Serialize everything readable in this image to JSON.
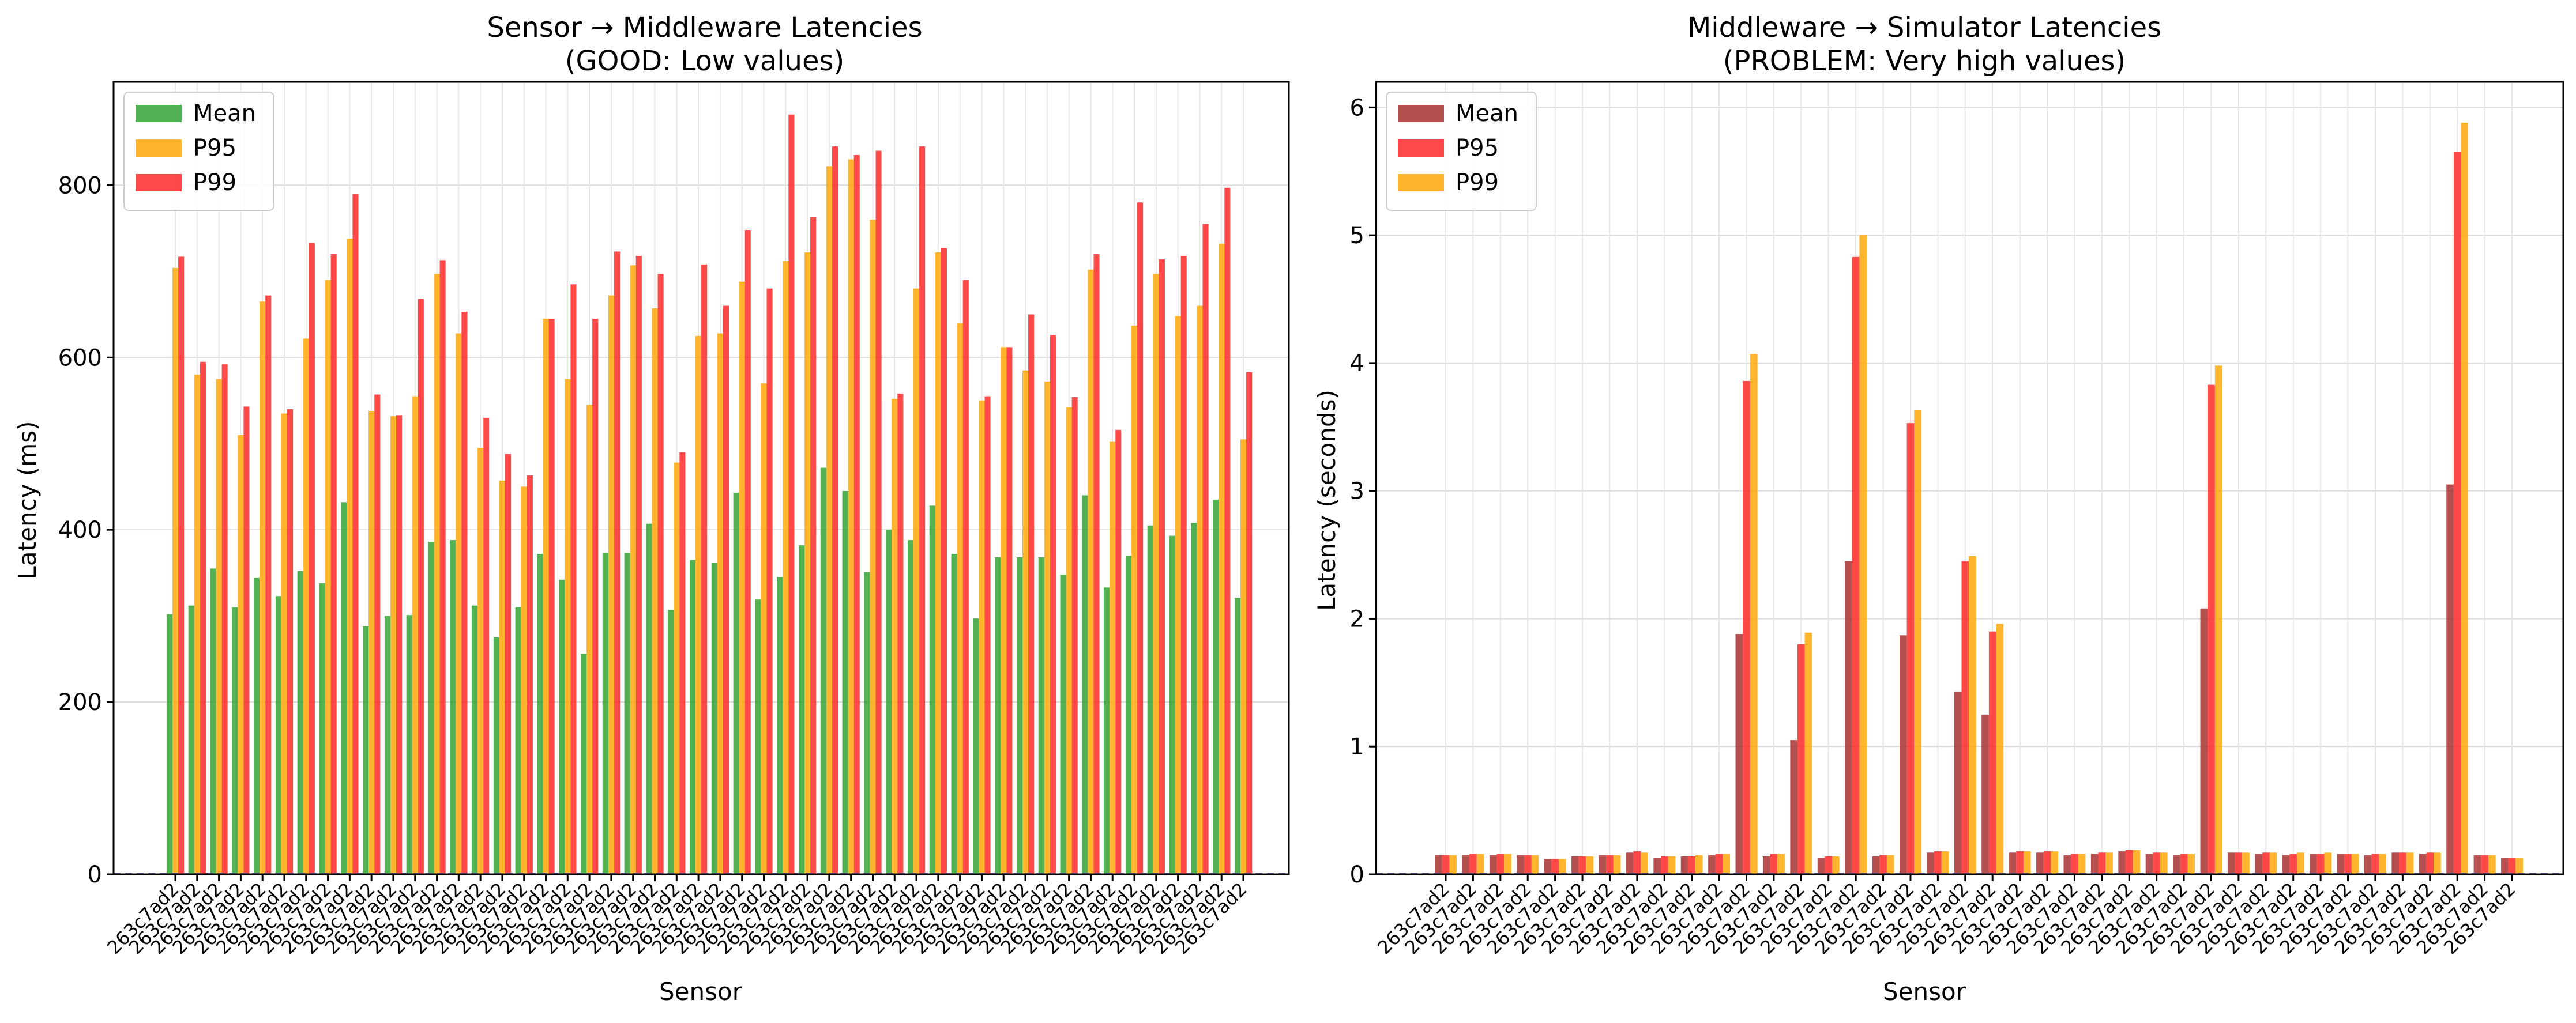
{
  "chart_data": [
    {
      "type": "bar",
      "title_line1": "Sensor → Middleware Latencies",
      "title_line2": "(GOOD: Low values)",
      "xlabel": "Sensor",
      "ylabel": "Latency (ms)",
      "ylim": [
        0,
        920
      ],
      "yticks": [
        0,
        200,
        400,
        600,
        800
      ],
      "grid": true,
      "legend_position": "upper left",
      "reference_line": 0,
      "categories": [
        "263c7ad2",
        "263c7ad2",
        "263c7ad2",
        "263c7ad2",
        "263c7ad2",
        "263c7ad2",
        "263c7ad2",
        "263c7ad2",
        "263c7ad2",
        "263c7ad2",
        "263c7ad2",
        "263c7ad2",
        "263c7ad2",
        "263c7ad2",
        "263c7ad2",
        "263c7ad2",
        "263c7ad2",
        "263c7ad2",
        "263c7ad2",
        "263c7ad2",
        "263c7ad2",
        "263c7ad2",
        "263c7ad2",
        "263c7ad2",
        "263c7ad2",
        "263c7ad2",
        "263c7ad2",
        "263c7ad2",
        "263c7ad2",
        "263c7ad2",
        "263c7ad2",
        "263c7ad2",
        "263c7ad2",
        "263c7ad2",
        "263c7ad2",
        "263c7ad2",
        "263c7ad2",
        "263c7ad2",
        "263c7ad2",
        "263c7ad2",
        "263c7ad2",
        "263c7ad2",
        "263c7ad2",
        "263c7ad2",
        "263c7ad2",
        "263c7ad2",
        "263c7ad2",
        "263c7ad2",
        "263c7ad2",
        "263c7ad2"
      ],
      "series": [
        {
          "name": "Mean",
          "color": "#2ca02c",
          "values": [
            302,
            312,
            355,
            310,
            344,
            323,
            352,
            338,
            432,
            288,
            300,
            301,
            386,
            388,
            312,
            275,
            310,
            372,
            342,
            256,
            373,
            373,
            407,
            307,
            365,
            362,
            443,
            319,
            345,
            382,
            472,
            445,
            351,
            400,
            388,
            428,
            372,
            297,
            368,
            368,
            368,
            348,
            440,
            333,
            370,
            405,
            393,
            408,
            435,
            321
          ]
        },
        {
          "name": "P95",
          "color": "#ffa500",
          "values": [
            704,
            580,
            575,
            510,
            665,
            535,
            622,
            690,
            738,
            538,
            532,
            555,
            697,
            628,
            495,
            457,
            450,
            645,
            575,
            545,
            672,
            707,
            657,
            478,
            625,
            628,
            688,
            570,
            712,
            722,
            822,
            830,
            760,
            552,
            680,
            722,
            640,
            550,
            612,
            585,
            572,
            542,
            702,
            502,
            637,
            697,
            648,
            660,
            732,
            505
          ]
        },
        {
          "name": "P99",
          "color": "#ff2020",
          "values": [
            717,
            595,
            592,
            543,
            672,
            540,
            733,
            720,
            790,
            557,
            533,
            668,
            713,
            653,
            530,
            488,
            463,
            645,
            685,
            645,
            723,
            718,
            697,
            490,
            708,
            660,
            748,
            680,
            882,
            763,
            845,
            835,
            840,
            558,
            845,
            727,
            690,
            555,
            612,
            650,
            626,
            554,
            720,
            516,
            780,
            714,
            718,
            755,
            797,
            583
          ]
        }
      ]
    },
    {
      "type": "bar",
      "title_line1": "Middleware → Simulator Latencies",
      "title_line2": "(PROBLEM: Very high values)",
      "xlabel": "Sensor",
      "ylabel": "Latency (seconds)",
      "ylim": [
        0,
        6.2
      ],
      "yticks": [
        0,
        1,
        2,
        3,
        4,
        5,
        6
      ],
      "grid": true,
      "legend_position": "upper left",
      "reference_line": 0,
      "categories": [
        "263c7ad2",
        "263c7ad2",
        "263c7ad2",
        "263c7ad2",
        "263c7ad2",
        "263c7ad2",
        "263c7ad2",
        "263c7ad2",
        "263c7ad2",
        "263c7ad2",
        "263c7ad2",
        "263c7ad2",
        "263c7ad2",
        "263c7ad2",
        "263c7ad2",
        "263c7ad2",
        "263c7ad2",
        "263c7ad2",
        "263c7ad2",
        "263c7ad2",
        "263c7ad2",
        "263c7ad2",
        "263c7ad2",
        "263c7ad2",
        "263c7ad2",
        "263c7ad2",
        "263c7ad2",
        "263c7ad2",
        "263c7ad2",
        "263c7ad2",
        "263c7ad2",
        "263c7ad2",
        "263c7ad2",
        "263c7ad2",
        "263c7ad2",
        "263c7ad2",
        "263c7ad2",
        "263c7ad2",
        "263c7ad2",
        "263c7ad2"
      ],
      "series": [
        {
          "name": "Mean",
          "color": "#a52a2a",
          "values": [
            0.15,
            0.15,
            0.15,
            0.15,
            0.12,
            0.14,
            0.15,
            0.17,
            0.13,
            0.14,
            0.15,
            1.88,
            0.14,
            1.05,
            0.13,
            2.45,
            0.14,
            1.87,
            0.17,
            1.43,
            1.25,
            0.17,
            0.17,
            0.15,
            0.16,
            0.18,
            0.16,
            0.15,
            2.08,
            0.17,
            0.16,
            0.15,
            0.16,
            0.16,
            0.15,
            0.17,
            0.16,
            3.05,
            0.15,
            0.13
          ]
        },
        {
          "name": "P95",
          "color": "#ff2020",
          "values": [
            0.15,
            0.16,
            0.16,
            0.15,
            0.12,
            0.14,
            0.15,
            0.18,
            0.14,
            0.14,
            0.16,
            3.86,
            0.16,
            1.8,
            0.14,
            4.83,
            0.15,
            3.53,
            0.18,
            2.45,
            1.9,
            0.18,
            0.18,
            0.16,
            0.17,
            0.19,
            0.17,
            0.16,
            3.83,
            0.17,
            0.17,
            0.16,
            0.16,
            0.16,
            0.16,
            0.17,
            0.17,
            5.65,
            0.15,
            0.13
          ]
        },
        {
          "name": "P99",
          "color": "#ffa500",
          "values": [
            0.15,
            0.16,
            0.16,
            0.15,
            0.12,
            0.14,
            0.15,
            0.17,
            0.14,
            0.15,
            0.16,
            4.07,
            0.16,
            1.89,
            0.14,
            5.0,
            0.15,
            3.63,
            0.18,
            2.49,
            1.96,
            0.18,
            0.18,
            0.16,
            0.17,
            0.19,
            0.17,
            0.16,
            3.98,
            0.17,
            0.17,
            0.17,
            0.17,
            0.16,
            0.16,
            0.17,
            0.17,
            5.88,
            0.15,
            0.13
          ]
        }
      ]
    }
  ]
}
